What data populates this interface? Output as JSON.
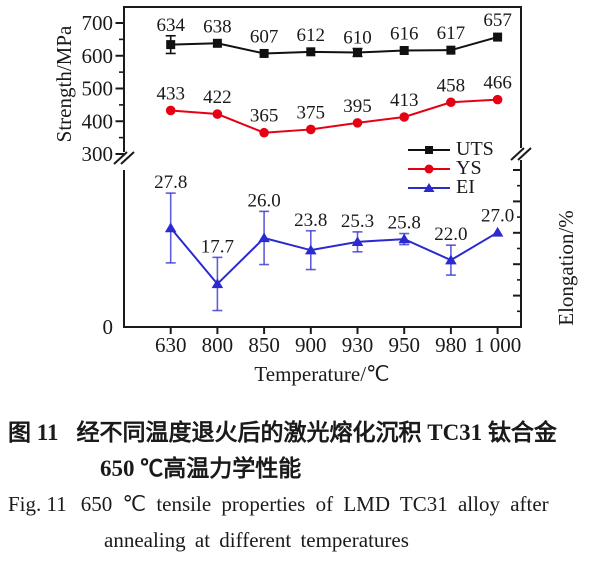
{
  "chart_data": {
    "type": "line",
    "title": "",
    "xlabel": "Temperature/℃",
    "ylabel_left": "Strength/MPa",
    "ylabel_right": "Elongation/%",
    "origin_label": "0",
    "axis_break": true,
    "grid": false,
    "legend_position": "inside-right",
    "categories": [
      "630",
      "800",
      "850",
      "900",
      "930",
      "950",
      "980",
      "1 000"
    ],
    "y_ticks_left": [
      {
        "label": "700",
        "value": 700
      },
      {
        "label": "600",
        "value": 600
      },
      {
        "label": "500",
        "value": 500
      },
      {
        "label": "400",
        "value": 400
      },
      {
        "label": "300",
        "value": 300
      }
    ],
    "y_minor_ticks_left": [
      650,
      550,
      450,
      350
    ],
    "strength_axis_range_shown": [
      300,
      700
    ],
    "series": [
      {
        "name": "UTS",
        "axis": "strength",
        "marker": "square",
        "color": "#111111",
        "values": [
          634,
          638,
          607,
          612,
          610,
          616,
          617,
          657
        ],
        "labels": [
          "634",
          "638",
          "607",
          "612",
          "610",
          "616",
          "617",
          "657"
        ],
        "errors": [
          27,
          0,
          0,
          0,
          12,
          0,
          0,
          0
        ]
      },
      {
        "name": "YS",
        "axis": "strength",
        "marker": "circle",
        "color": "#e60014",
        "values": [
          433,
          422,
          365,
          375,
          395,
          413,
          458,
          466
        ],
        "labels": [
          "433",
          "422",
          "365",
          "375",
          "395",
          "413",
          "458",
          "466"
        ],
        "errors": [
          0,
          0,
          0,
          0,
          0,
          0,
          0,
          0
        ]
      },
      {
        "name": "EI",
        "axis": "elongation",
        "marker": "triangle",
        "color": "#2a2ad0",
        "values": [
          27.8,
          17.7,
          26.0,
          23.8,
          25.3,
          25.8,
          22.0,
          27.0
        ],
        "labels": [
          "27.8",
          "17.7",
          "26.0",
          "23.8",
          "25.3",
          "25.8",
          "22.0",
          "27.0"
        ],
        "errors": [
          6.3,
          4.8,
          4.8,
          3.5,
          1.8,
          1.0,
          2.7,
          0
        ]
      }
    ]
  },
  "caption": {
    "zh_label": "图 11",
    "zh_line1": "经不同温度退火后的激光熔化沉积 TC31 钛合金",
    "zh_line2": "650 ℃高温力学性能",
    "en_label": "Fig. 11",
    "en_line1": "650 ℃ tensile properties of LMD TC31 alloy after",
    "en_line2": "annealing at different temperatures"
  }
}
